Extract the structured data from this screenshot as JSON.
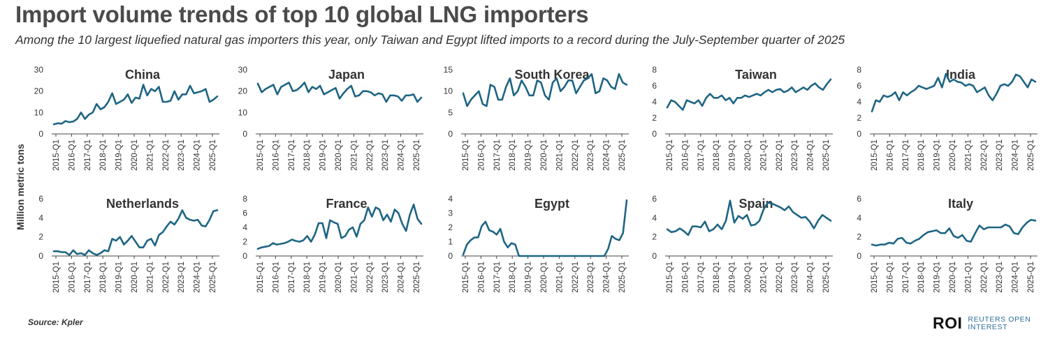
{
  "title": "Import volume trends of top 10 global LNG importers",
  "subtitle": "Among the 10 largest liquefied natural gas importers this year, only Taiwan and Egypt lifted imports to a record during the July-September quarter of 2025",
  "source": "Source:  Kpler",
  "brand": {
    "logo": "ROI",
    "line1": "REUTERS OPEN",
    "line2": "INTEREST"
  },
  "colors": {
    "line": "#1e6584",
    "axis": "#444444",
    "text": "#333333"
  },
  "chart_data": [
    {
      "type": "line",
      "title": "China",
      "ylabel": "Million metric tons",
      "yticks": [
        0,
        10,
        20,
        30
      ],
      "ylim": [
        0,
        30
      ],
      "xticks": [
        "2015-Q1",
        "2016-Q1",
        "2017-Q1",
        "2018-Q1",
        "2019-Q1",
        "2020-Q1",
        "2021-Q1",
        "2022-Q1",
        "2023-Q1",
        "2024-Q1",
        "2025-Q1"
      ],
      "values": [
        4.5,
        5,
        4.8,
        6,
        5.5,
        5.8,
        7,
        10,
        7,
        9,
        10,
        14,
        11.5,
        12.5,
        15,
        19,
        14,
        15,
        16,
        18.5,
        14.5,
        17,
        16.5,
        23,
        18,
        21,
        20,
        22,
        15,
        15,
        15.5,
        20,
        16,
        18.5,
        18.5,
        22.5,
        19,
        19.5,
        20,
        21,
        15,
        16,
        17.5
      ]
    },
    {
      "type": "line",
      "title": "Japan",
      "yticks": [
        0,
        10,
        20,
        30
      ],
      "ylim": [
        0,
        30
      ],
      "xticks": [
        "2015-Q1",
        "2016-Q1",
        "2017-Q1",
        "2018-Q1",
        "2019-Q1",
        "2020-Q1",
        "2021-Q1",
        "2022-Q1",
        "2023-Q1",
        "2024-Q1",
        "2025-Q1"
      ],
      "values": [
        23.5,
        19.5,
        21,
        22,
        23,
        18.5,
        22,
        23,
        24,
        20,
        20.5,
        22,
        24,
        19.5,
        22,
        21,
        22.5,
        18.5,
        19.5,
        20.5,
        21.5,
        16.5,
        19,
        21,
        22.5,
        17.5,
        18,
        20,
        20,
        19.5,
        18,
        19,
        18.5,
        15,
        18,
        18,
        17.5,
        15.5,
        18,
        18,
        18.5,
        15,
        17
      ]
    },
    {
      "type": "line",
      "title": "South Korea",
      "yticks": [
        0,
        5,
        10,
        15
      ],
      "ylim": [
        0,
        15
      ],
      "xticks": [
        "2015-Q1",
        "2016-Q1",
        "2017-Q1",
        "2018-Q1",
        "2019-Q1",
        "2020-Q1",
        "2021-Q1",
        "2022-Q1",
        "2023-Q1",
        "2024-Q1",
        "2025-Q1"
      ],
      "values": [
        9.5,
        6.5,
        8,
        9,
        10,
        7,
        6.5,
        11.5,
        11,
        8,
        8,
        11,
        13,
        9,
        10,
        12.5,
        11,
        9,
        9,
        12.5,
        12,
        9,
        8,
        12,
        13,
        10,
        11,
        12.5,
        12.5,
        9.5,
        11,
        12.5,
        13,
        14,
        9.5,
        10,
        13,
        12.5,
        11,
        10.5,
        14,
        12,
        11.5
      ]
    },
    {
      "type": "line",
      "title": "Taiwan",
      "yticks": [
        0,
        2,
        4,
        6,
        8
      ],
      "ylim": [
        0,
        8
      ],
      "xticks": [
        "2015-Q1",
        "2016-Q1",
        "2017-Q1",
        "2018-Q1",
        "2019-Q1",
        "2020-Q1",
        "2021-Q1",
        "2022-Q1",
        "2023-Q1",
        "2024-Q1",
        "2025-Q1"
      ],
      "values": [
        3.3,
        4.2,
        4,
        3.5,
        3,
        4.2,
        4,
        3.8,
        4.2,
        3.5,
        4.5,
        5,
        4.5,
        4.5,
        4.8,
        4.2,
        4.5,
        3.8,
        4.5,
        4.5,
        4.8,
        4.6,
        4.8,
        5,
        4.8,
        5.2,
        5.5,
        5.2,
        5.5,
        5.6,
        5.2,
        5.4,
        5.8,
        5.2,
        5.5,
        5.8,
        5.5,
        6,
        6.3,
        5.8,
        5.5,
        6.2,
        6.8
      ]
    },
    {
      "type": "line",
      "title": "India",
      "yticks": [
        0,
        2,
        4,
        6,
        8
      ],
      "ylim": [
        0,
        8
      ],
      "xticks": [
        "2015-Q1",
        "2016-Q1",
        "2017-Q1",
        "2018-Q1",
        "2019-Q1",
        "2020-Q1",
        "2021-Q1",
        "2022-Q1",
        "2023-Q1",
        "2024-Q1",
        "2025-Q1"
      ],
      "values": [
        2.8,
        4.2,
        4,
        4.8,
        4.6,
        4.8,
        5.2,
        4.2,
        5.2,
        4.8,
        5.2,
        5.5,
        6,
        5.8,
        5.6,
        5.8,
        6,
        7,
        5.8,
        7.5,
        6.5,
        6.8,
        6.5,
        6.4,
        6,
        6.2,
        6,
        5.2,
        5.5,
        5.8,
        4.8,
        4.2,
        5,
        6,
        6.2,
        6,
        6.5,
        7.4,
        7.2,
        6.5,
        5.8,
        6.8,
        6.5
      ]
    },
    {
      "type": "line",
      "title": "Netherlands",
      "yticks": [
        0,
        2,
        4,
        6
      ],
      "ylim": [
        0,
        6
      ],
      "xticks": [
        "2015-Q1",
        "2016-Q1",
        "2017-Q1",
        "2018-Q1",
        "2019-Q1",
        "2020-Q1",
        "2021-Q1",
        "2022-Q1",
        "2023-Q1",
        "2024-Q1",
        "2025-Q1"
      ],
      "values": [
        0.5,
        0.5,
        0.4,
        0.4,
        0.1,
        0.6,
        0.2,
        0.3,
        0.1,
        0.6,
        0.3,
        0.1,
        0.3,
        0.6,
        0.5,
        1.8,
        1.6,
        2,
        1.2,
        1.6,
        2.1,
        1.5,
        0.9,
        0.9,
        1.6,
        1.8,
        1.1,
        2.2,
        2.5,
        3.1,
        3.6,
        3.3,
        3.9,
        4.8,
        4,
        3.8,
        3.7,
        3.8,
        3.2,
        3.1,
        3.8,
        4.7,
        4.8
      ]
    },
    {
      "type": "line",
      "title": "France",
      "yticks": [
        0,
        2,
        4,
        6,
        8
      ],
      "ylim": [
        0,
        8
      ],
      "xticks": [
        "2015-Q1",
        "2016-Q1",
        "2017-Q1",
        "2018-Q1",
        "2019-Q1",
        "2020-Q1",
        "2021-Q1",
        "2022-Q1",
        "2023-Q1",
        "2024-Q1",
        "2025-Q1"
      ],
      "values": [
        1,
        1.2,
        1.3,
        1.4,
        1.8,
        1.6,
        1.7,
        1.8,
        2,
        2.3,
        2.1,
        2,
        2.2,
        2.8,
        2,
        3,
        4.6,
        4.6,
        2.5,
        5,
        4.7,
        4.5,
        2.5,
        2.8,
        3.7,
        4,
        2.7,
        4.5,
        5,
        6.8,
        5.5,
        6.8,
        6.5,
        5,
        5.8,
        4.8,
        6.5,
        6,
        4.5,
        3.5,
        5.8,
        7.2,
        5.2,
        4.5
      ]
    },
    {
      "type": "line",
      "title": "Egypt",
      "yticks": [
        0,
        1,
        2,
        3,
        4
      ],
      "ylim": [
        0,
        4
      ],
      "xticks": [
        "2015-Q1",
        "2016-Q1",
        "2017-Q1",
        "2018-Q1",
        "2019-Q1",
        "2020-Q1",
        "2021-Q1",
        "2022-Q1",
        "2023-Q1",
        "2024-Q1",
        "2025-Q1"
      ],
      "values": [
        0.1,
        0.8,
        1.1,
        1.3,
        1.3,
        2.1,
        2.4,
        1.8,
        1.7,
        1.5,
        1.9,
        1,
        0.6,
        0.9,
        0.8,
        0,
        0,
        0,
        0,
        0,
        0,
        0,
        0,
        0,
        0,
        0,
        0,
        0,
        0,
        0,
        0,
        0,
        0,
        0,
        0,
        0,
        0,
        0,
        0,
        0.5,
        1.4,
        1.2,
        1.1,
        1.6,
        3.9
      ]
    },
    {
      "type": "line",
      "title": "Spain",
      "yticks": [
        0,
        2,
        4,
        6
      ],
      "ylim": [
        0,
        6
      ],
      "xticks": [
        "2015-Q1",
        "2016-Q1",
        "2017-Q1",
        "2018-Q1",
        "2019-Q1",
        "2020-Q1",
        "2021-Q1",
        "2022-Q1",
        "2023-Q1",
        "2024-Q1",
        "2025-Q1"
      ],
      "values": [
        2.8,
        2.5,
        2.6,
        2.9,
        2.6,
        2.2,
        3.1,
        3.1,
        3,
        3.6,
        2.6,
        2.8,
        3.3,
        2.8,
        3.7,
        5.8,
        3.5,
        4.2,
        3.9,
        4.3,
        3.2,
        3.3,
        3.7,
        4.9,
        5.6,
        5.5,
        5.3,
        5.1,
        4.8,
        5.2,
        4.6,
        4.3,
        4,
        4.1,
        3.6,
        2.9,
        3.7,
        4.3,
        4,
        3.7
      ]
    },
    {
      "type": "line",
      "title": "Italy",
      "yticks": [
        0,
        2,
        4,
        6
      ],
      "ylim": [
        0,
        6
      ],
      "xticks": [
        "2015-Q1",
        "2016-Q1",
        "2017-Q1",
        "2018-Q1",
        "2019-Q1",
        "2020-Q1",
        "2021-Q1",
        "2022-Q1",
        "2023-Q1",
        "2024-Q1",
        "2025-Q1"
      ],
      "values": [
        1.2,
        1.1,
        1.2,
        1.2,
        1.4,
        1.3,
        1.8,
        1.9,
        1.4,
        1.3,
        1.6,
        1.8,
        2.2,
        2.5,
        2.6,
        2.7,
        2.4,
        2.4,
        2.9,
        2.1,
        1.9,
        2.2,
        1.6,
        1.5,
        2.4,
        3.2,
        2.8,
        3,
        3,
        3,
        3,
        3.3,
        3.1,
        2.4,
        2.3,
        3,
        3.5,
        3.8,
        3.7
      ]
    }
  ]
}
